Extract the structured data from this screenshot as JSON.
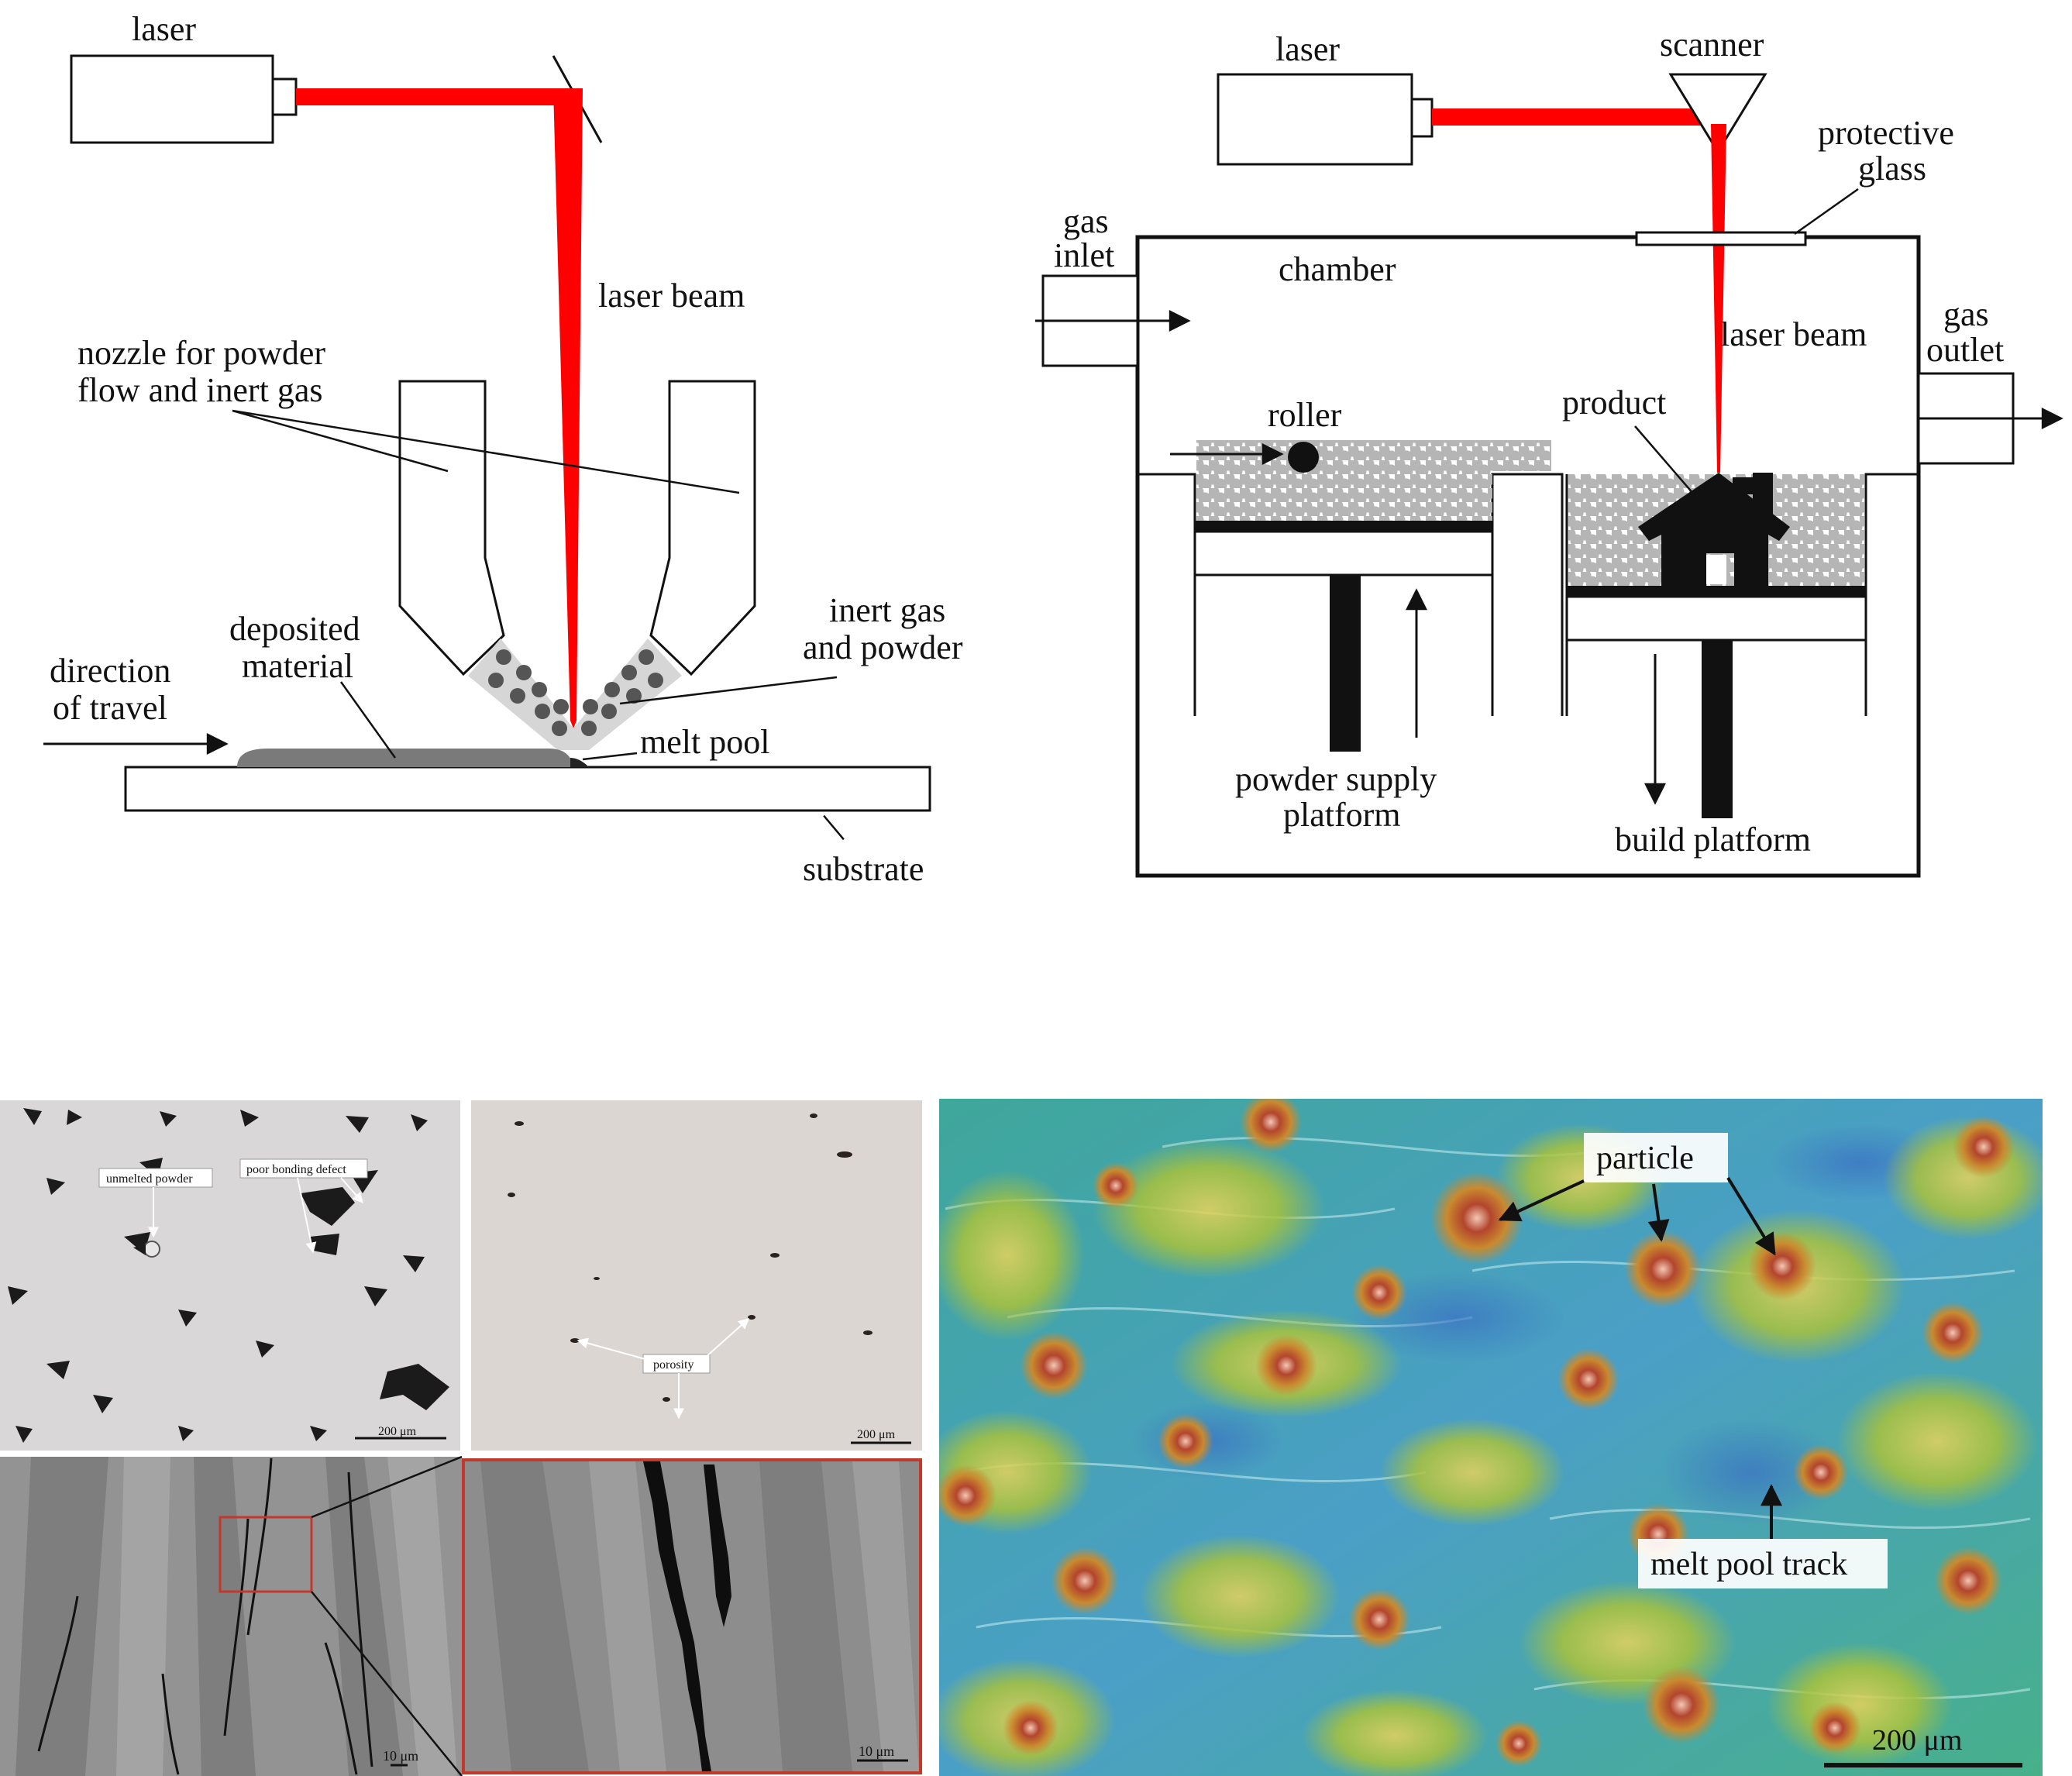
{
  "panel_ded": {
    "labels": {
      "laser": "laser",
      "laser_beam": "laser beam",
      "nozzle_line1": "nozzle for powder",
      "nozzle_line2": "flow and inert gas",
      "deposited_line1": "deposited",
      "deposited_line2": "material",
      "direction_line1": "direction",
      "direction_line2": "of travel",
      "inert_line1": "inert gas",
      "inert_line2": "and powder",
      "melt_pool": "melt pool",
      "substrate": "substrate"
    }
  },
  "panel_pbf": {
    "labels": {
      "laser": "laser",
      "scanner": "scanner",
      "protective_line1": "protective",
      "protective_line2": "glass",
      "gas_inlet_line1": "gas",
      "gas_inlet_line2": "inlet",
      "chamber": "chamber",
      "laser_beam": "laser beam",
      "gas_outlet_line1": "gas",
      "gas_outlet_line2": "outlet",
      "roller": "roller",
      "product": "product",
      "powder_supply_line1": "powder supply",
      "powder_supply_line2": "platform",
      "build_platform": "build platform"
    }
  },
  "micrographs": {
    "top_left": {
      "unmelted_powder": "unmelted powder",
      "poor_bonding": "poor bonding defect",
      "scale": "200 μm"
    },
    "top_right": {
      "porosity": "porosity",
      "scale": "200 μm"
    },
    "bottom_left": {
      "scale": "10 μm"
    },
    "bottom_right": {
      "scale": "10 μm"
    }
  },
  "heatmap": {
    "particle": "particle",
    "melt_pool_track": "melt pool track",
    "scale": "200 μm"
  },
  "colors": {
    "laser_red": "#ff0000",
    "powder_grey": "#b5b5b5",
    "particle_dark": "#555555",
    "deposit_grey": "#7a7a7a",
    "micro_bg": "#d9d7d8",
    "sem_bg": "#8f8f8f",
    "zoom_frame": "#c0392b"
  }
}
